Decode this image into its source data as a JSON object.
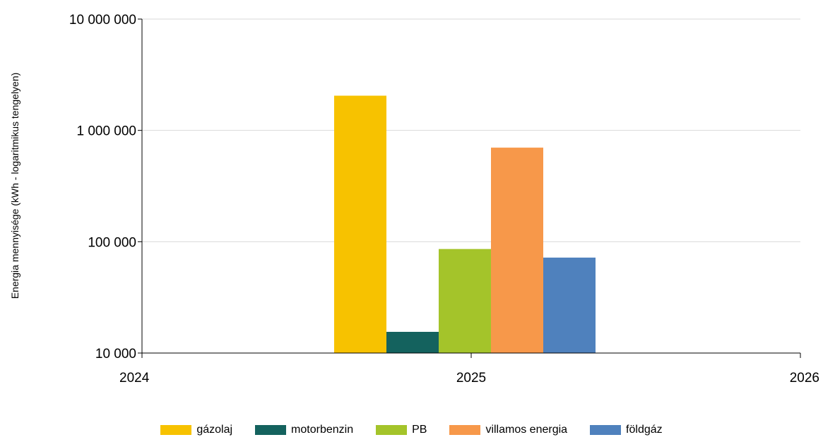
{
  "chart_data": {
    "type": "bar",
    "ylabel": "Energia mennyisége (kWh - logaritmikus tengelyen)",
    "y_scale": "log",
    "ylim": [
      10000,
      10000000
    ],
    "y_ticks": [
      10000,
      100000,
      1000000,
      10000000
    ],
    "y_tick_labels": [
      "10 000",
      "100 000",
      "1 000 000",
      "10 000 000"
    ],
    "xlim": [
      2024,
      2026
    ],
    "x_ticks": [
      2024,
      2025,
      2026
    ],
    "x_tick_labels": [
      "2024",
      "2025",
      "2026"
    ],
    "category_x": 2025,
    "grid": true,
    "legend_position": "bottom",
    "series": [
      {
        "name": "gázolaj",
        "color": "#f7c200",
        "values": [
          2050000
        ]
      },
      {
        "name": "motorbenzin",
        "color": "#14625e",
        "values": [
          15500
        ]
      },
      {
        "name": "PB",
        "color": "#a4c42a",
        "values": [
          86000
        ]
      },
      {
        "name": "villamos energia",
        "color": "#f7984a",
        "values": [
          700000
        ]
      },
      {
        "name": "földgáz",
        "color": "#4f81bd",
        "values": [
          72000
        ]
      }
    ]
  }
}
